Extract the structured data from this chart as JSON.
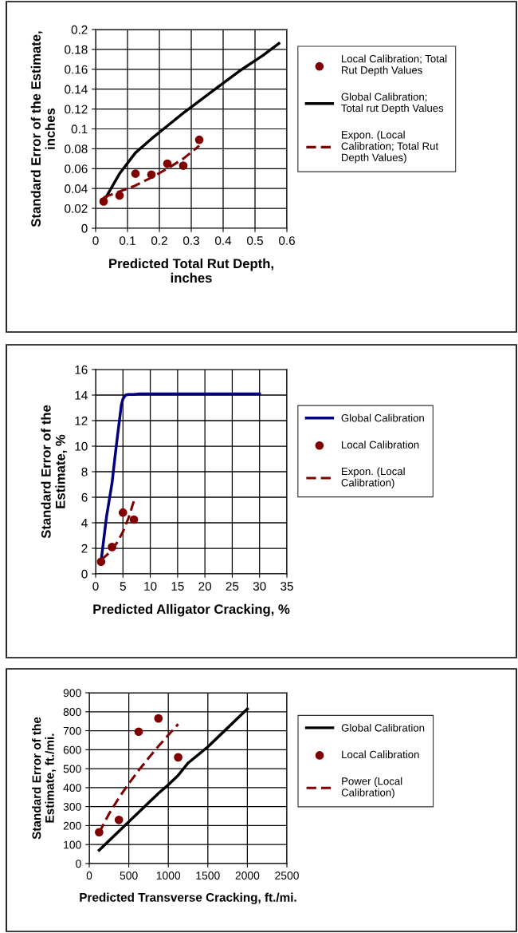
{
  "chart_data": [
    {
      "type": "line",
      "xlabel": "Predicted Total Rut Depth,\ninches",
      "ylabel": "Standard Error of the Estimate,\ninches",
      "xlim": [
        0,
        0.6
      ],
      "xticks": [
        0,
        0.1,
        0.2,
        0.3,
        0.4,
        0.5,
        0.6
      ],
      "ylim": [
        0,
        0.2
      ],
      "yticks": [
        0,
        0.02,
        0.04,
        0.06,
        0.08,
        0.1,
        0.12,
        0.14,
        0.16,
        0.18,
        0.2
      ],
      "grid": true,
      "legend": "right",
      "series": [
        {
          "type": "scatter",
          "name": "Local Calibration; Total\nRut Depth Values",
          "color": "#800000",
          "marker": "circle",
          "x": [
            0.025,
            0.075,
            0.125,
            0.175,
            0.225,
            0.275,
            0.325
          ],
          "values": [
            0.027,
            0.033,
            0.055,
            0.054,
            0.065,
            0.063,
            0.089
          ]
        },
        {
          "name": "Global Calibration;\nTotal rut Depth Values",
          "color": "#000000",
          "line_style": "solid",
          "x": [
            0.025,
            0.075,
            0.125,
            0.175,
            0.225,
            0.275,
            0.325,
            0.375,
            0.45,
            0.525,
            0.575
          ],
          "values": [
            0.027,
            0.055,
            0.076,
            0.09,
            0.103,
            0.116,
            0.128,
            0.14,
            0.158,
            0.174,
            0.186
          ]
        },
        {
          "name": "Expon. (Local\nCalibration; Total Rut\nDepth Values)",
          "color": "#800000",
          "line_style": "dashed",
          "x": [
            0.025,
            0.075,
            0.125,
            0.175,
            0.225,
            0.275,
            0.325
          ],
          "values": [
            0.031,
            0.037,
            0.043,
            0.051,
            0.06,
            0.07,
            0.083
          ]
        }
      ]
    },
    {
      "type": "line",
      "xlabel": "Predicted Alligator Cracking, %",
      "ylabel": "Standard Error of the\nEstimate, %",
      "xlim": [
        0,
        35
      ],
      "xticks": [
        0,
        5,
        10,
        15,
        20,
        25,
        30,
        35
      ],
      "ylim": [
        0,
        16
      ],
      "yticks": [
        0,
        2,
        4,
        6,
        8,
        10,
        12,
        14,
        16
      ],
      "grid": true,
      "legend": "right",
      "series": [
        {
          "name": "Global Calibration",
          "color": "#000080",
          "line_style": "solid",
          "x": [
            1,
            2,
            3,
            3.5,
            4,
            4.5,
            4.7,
            5,
            5.5,
            6,
            7,
            8,
            10,
            15,
            20,
            30
          ],
          "values": [
            1,
            4.5,
            7.1,
            9,
            10.8,
            12.5,
            13.2,
            13.7,
            14,
            14.05,
            14.05,
            14.1,
            14.1,
            14.1,
            14.1,
            14.1
          ]
        },
        {
          "type": "scatter",
          "name": "Local Calibration",
          "color": "#800000",
          "marker": "circle",
          "x": [
            1,
            3,
            5,
            7
          ],
          "values": [
            0.95,
            2.1,
            4.8,
            4.25
          ]
        },
        {
          "name": "Expon. (Local\nCalibration)",
          "color": "#800000",
          "line_style": "dashed",
          "x": [
            1,
            2,
            3,
            4,
            5,
            6,
            7
          ],
          "values": [
            1.1,
            1.45,
            1.9,
            2.5,
            3.3,
            4.35,
            5.7
          ]
        }
      ]
    },
    {
      "type": "line",
      "xlabel": "Predicted Transverse Cracking, ft./mi.",
      "ylabel": "Standard Error of the\nEstimate, ft./mi.",
      "xlim": [
        0,
        2500
      ],
      "xticks": [
        0,
        500,
        1000,
        1500,
        2000,
        2500
      ],
      "ylim": [
        0,
        900
      ],
      "yticks": [
        0,
        100,
        200,
        300,
        400,
        500,
        600,
        700,
        800,
        900
      ],
      "grid": true,
      "legend": "right",
      "series": [
        {
          "name": "Global Calibration",
          "color": "#000000",
          "line_style": "solid",
          "x": [
            125,
            375,
            625,
            875,
            1000,
            1125,
            1250,
            1500,
            1625,
            2000
          ],
          "values": [
            70,
            170,
            270,
            370,
            415,
            465,
            530,
            615,
            665,
            815
          ]
        },
        {
          "type": "scatter",
          "name": "Local Calibration",
          "color": "#800000",
          "marker": "circle",
          "x": [
            125,
            375,
            625,
            875,
            1125
          ],
          "values": [
            165,
            230,
            695,
            765,
            560
          ]
        },
        {
          "name": "Power (Local\nCalibration)",
          "color": "#800000",
          "line_style": "dashed",
          "x": [
            125,
            250,
            375,
            500,
            625,
            750,
            875,
            1000,
            1125
          ],
          "values": [
            163,
            262,
            346,
            421,
            491,
            556,
            618,
            677,
            735
          ]
        }
      ]
    }
  ]
}
